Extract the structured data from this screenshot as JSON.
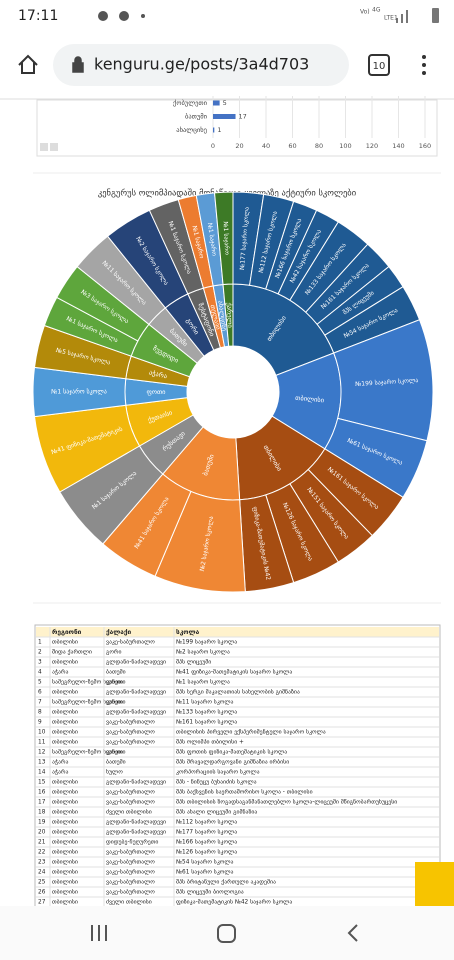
{
  "status_bar": {
    "time": "17:11",
    "network": [
      "Vo)",
      "4G",
      "LTE1"
    ]
  },
  "browser": {
    "url": "kenguru.ge/posts/3a4d703",
    "tabs": "10"
  },
  "bar_chart": {
    "categories": [
      "ქობულეთი",
      "ბათუმი",
      "ახალციხე"
    ],
    "values": [
      5,
      17,
      1
    ],
    "xlim": [
      0,
      160
    ],
    "xticks": [
      0,
      20,
      40,
      60,
      80,
      100,
      120,
      140,
      160
    ],
    "color": "#4472c4"
  },
  "sunburst": {
    "title": "კენგურუს ოლიმპიადაში მონაწილე ყველაზე აქტიური სკოლები",
    "nodes": [
      {
        "name": "თბილისი",
        "color": "#1f5a93",
        "value": 78,
        "children": [
          {
            "name": "№177 საჯარო სკოლა",
            "value": 10
          },
          {
            "name": "№112 საჯარო სკოლა",
            "value": 10
          },
          {
            "name": "№166 საჯარო სკოლა",
            "value": 8
          },
          {
            "name": "№42 საჯარო სკოლა",
            "value": 8
          },
          {
            "name": "№133 საჯარო სკოლა",
            "value": 12
          },
          {
            "name": "№161 საჯარო სკოლა",
            "value": 10
          },
          {
            "name": "შპს ლიცეუმი",
            "value": 8
          },
          {
            "name": "№54 საჯარო სკოლა",
            "value": 12
          }
        ]
      },
      {
        "name": "თბილისი",
        "color": "#3a78c9",
        "value": 60,
        "children": [
          {
            "name": "№199 საჯარო სკოლა",
            "value": 40
          },
          {
            "name": "№61 საჯარო სკოლა",
            "value": 20
          }
        ]
      },
      {
        "name": "თბილისი",
        "color": "#a64d12",
        "value": 62,
        "children": [
          {
            "name": "№161 საჯარო სკოლა",
            "value": 16
          },
          {
            "name": "№151 საჯარო სკოლა",
            "value": 14
          },
          {
            "name": "№126 საჯარო სკოლა",
            "value": 16
          },
          {
            "name": "ფიზიკა-მათემატიკის №42",
            "value": 16
          }
        ]
      },
      {
        "name": "ბათუმი",
        "color": "#ef8734",
        "value": 50,
        "children": [
          {
            "name": "№2 საჯარო სკოლა",
            "value": 30
          },
          {
            "name": "№41 საჯარო სკოლა",
            "value": 20
          }
        ]
      },
      {
        "name": "რუსთავი",
        "color": "#8c8c8c",
        "value": 22,
        "children": [
          {
            "name": "№1 საჯარო სკოლა",
            "value": 22
          }
        ]
      },
      {
        "name": "ქუთაისი",
        "color": "#f2b80c",
        "value": 26,
        "children": [
          {
            "name": "№41 ფიზიკა-მათემატიკის",
            "value": 26
          }
        ]
      },
      {
        "name": "ფოთი",
        "color": "#4f9ad8",
        "value": 16,
        "children": [
          {
            "name": "№1 საჯარო სკოლა",
            "value": 16
          }
        ]
      },
      {
        "name": "აჭარა",
        "color": "#b38a0a",
        "value": 14,
        "children": [
          {
            "name": "№5 საჯარო სკოლა",
            "value": 14
          }
        ]
      },
      {
        "name": "ზუგდიდი",
        "color": "#5ea63c",
        "value": 22,
        "children": [
          {
            "name": "№1 საჯარო სკოლა",
            "value": 10
          },
          {
            "name": "№3 საჯარო სკოლა",
            "value": 12
          }
        ]
      },
      {
        "name": "ბათუმი",
        "color": "#a5a5a5",
        "value": 14,
        "children": [
          {
            "name": "№11 საჯარო სკოლა",
            "value": 14
          }
        ]
      },
      {
        "name": "გორი",
        "color": "#264478",
        "value": 16,
        "children": [
          {
            "name": "№2 საჯარო სკოლა",
            "value": 16
          }
        ]
      },
      {
        "name": "ზესტაფონი",
        "color": "#636363",
        "value": 10,
        "children": [
          {
            "name": "№1 საჯარო სკოლა",
            "value": 10
          }
        ]
      },
      {
        "name": "თელავი",
        "color": "#ec7c30",
        "value": 6,
        "children": [
          {
            "name": "№1 საჯარო",
            "value": 6
          }
        ]
      },
      {
        "name": "ახალციხე",
        "color": "#5b9bd5",
        "value": 6,
        "children": [
          {
            "name": "№1 საჯარო",
            "value": 6
          }
        ]
      },
      {
        "name": "ქარელი",
        "color": "#3d7a26",
        "value": 6,
        "children": [
          {
            "name": "№1 საჯარო",
            "value": 6
          }
        ]
      }
    ]
  },
  "table": {
    "header": [
      "რეგიონი",
      "ქალაქი",
      "სკოლა"
    ],
    "rows": [
      [
        "1",
        "თბილისი",
        "ვაკე-საბურთალო",
        "№199 საჯარო სკოლა"
      ],
      [
        "2",
        "შიდა ქართლი",
        "გორი",
        "№2 საჯარო სკოლა"
      ],
      [
        "3",
        "თბილისი",
        "გლდანი-ნაძალადევი",
        "შპს ლიცეუმი"
      ],
      [
        "4",
        "აჭარა",
        "ბათუმი",
        "№41 ფიზიკა-მათემატიკის საჯარო სკოლა"
      ],
      [
        "5",
        "სამეგრელო-ზემო სვანეთი",
        "ფოთი",
        "№1 საჯარო სკოლა"
      ],
      [
        "6",
        "თბილისი",
        "გლდანი-ნაძალადევი",
        "შპს სერგი მაკალათიას სახელობის გიმნაზია"
      ],
      [
        "7",
        "სამეგრელო-ზემო სვანეთი",
        "ფოთი",
        "№11 საჯარო სკოლა"
      ],
      [
        "8",
        "თბილისი",
        "გლდანი-ნაძალადევი",
        "№133 საჯარო სკოლა"
      ],
      [
        "9",
        "თბილისი",
        "ვაკე-საბურთალო",
        "№161 საჯარო სკოლა"
      ],
      [
        "10",
        "თბილისი",
        "ვაკე-საბურთალო",
        "თბილისის პირველი ექსპერიმენტული საჯარო სკოლა"
      ],
      [
        "11",
        "თბილისი",
        "ვაკე-საბურთალო",
        "შპს ოლიმპი თბილისი +"
      ],
      [
        "12",
        "სამეგრელო-ზემო სვანეთი",
        "ფოთი",
        "შპს ფოთის ფიზიკა-მათემატიკის სკოლა"
      ],
      [
        "13",
        "აჭარა",
        "ბათუმი",
        "შპს მრავალდარგოვანი გიმნაზია ირბისი"
      ],
      [
        "14",
        "აჭარა",
        "ხულო",
        "კორპორაციის საჯარო სკოლა"
      ],
      [
        "15",
        "თბილისი",
        "გლდანი-ნაძალადევი",
        "შპს - ნინუცუ ბუხაიძის სკოლა"
      ],
      [
        "16",
        "თბილისი",
        "ვაკე-საბურთალო",
        "შპს ბაქსვენის საერთაშორისო სკოლა - თბილისი"
      ],
      [
        "17",
        "თბილისი",
        "ვაკე-საბურთალო",
        "შპს თბილისის ზოგადსაგანმანათლებლო სკოლა-ლიცეუმი მწიგნობართუხუცესი"
      ],
      [
        "18",
        "თბილისი",
        "ძველი თბილისი",
        "შპს ახალი ლიცეუმი გიმნაზია"
      ],
      [
        "19",
        "თბილისი",
        "გლდანი-ნაძალადევი",
        "№112 საჯარო სკოლა"
      ],
      [
        "20",
        "თბილისი",
        "გლდანი-ნაძალადევი",
        "№177 საჯარო სკოლა"
      ],
      [
        "21",
        "თბილისი",
        "დიდუბე-ჩუღურეთი",
        "№166 საჯარო სკოლა"
      ],
      [
        "22",
        "თბილისი",
        "ვაკე-საბურთალო",
        "№126 საჯარო სკოლა"
      ],
      [
        "23",
        "თბილისი",
        "ვაკე-საბურთალო",
        "№54 საჯარო სკოლა"
      ],
      [
        "24",
        "თბილისი",
        "ვაკე-საბურთალო",
        "№61 საჯარო სკოლა"
      ],
      [
        "25",
        "თბილისი",
        "ვაკე-საბურთალო",
        "შპს ბრიტანული ქართული აკადემია"
      ],
      [
        "26",
        "თბილისი",
        "ვაკე-საბურთალო",
        "შპს ლიცეუმი ბიოლოგია"
      ],
      [
        "27",
        "თბილისი",
        "ძველი თბილისი",
        "ფიზიკა-მათემატიკის №42 საჯარო სკოლა"
      ]
    ]
  }
}
